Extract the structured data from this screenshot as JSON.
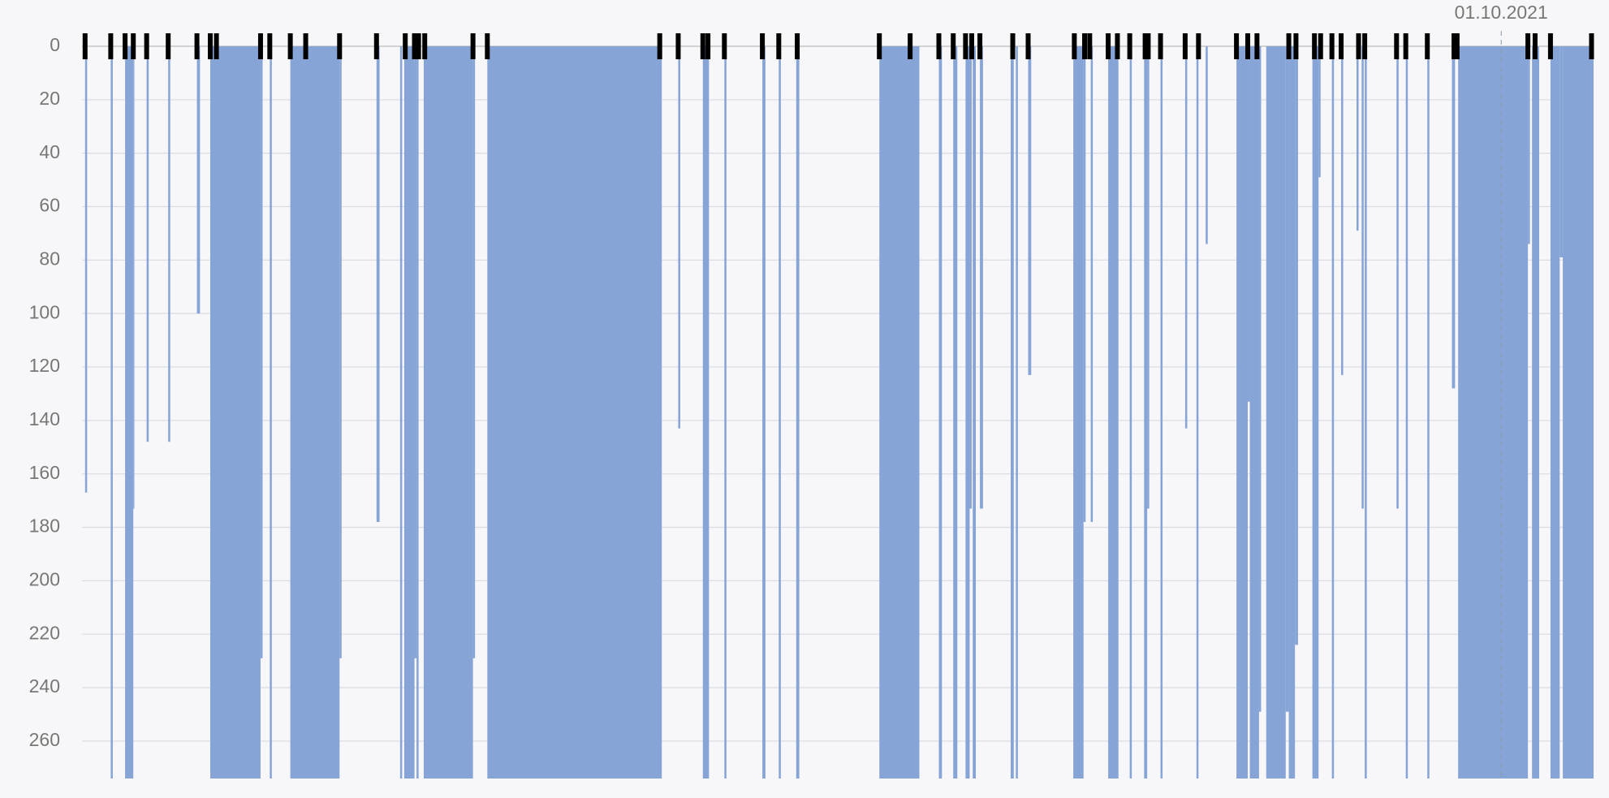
{
  "chart_data": {
    "type": "bar",
    "ylim": [
      0,
      274
    ],
    "yticks": [
      0,
      20,
      40,
      60,
      80,
      100,
      120,
      140,
      160,
      180,
      200,
      220,
      240,
      260
    ],
    "xlim": [
      80,
      1553
    ],
    "grid": true,
    "inverted_y": true,
    "color": "#87a4d7",
    "bars": [
      {
        "x0": 83,
        "x1": 85,
        "value": 167
      },
      {
        "x0": 108,
        "x1": 110,
        "value": 274
      },
      {
        "x0": 122,
        "x1": 130,
        "value": 274
      },
      {
        "x0": 130,
        "x1": 131,
        "value": 173
      },
      {
        "x0": 143,
        "x1": 145,
        "value": 148
      },
      {
        "x0": 164,
        "x1": 166,
        "value": 148
      },
      {
        "x0": 192,
        "x1": 195,
        "value": 100
      },
      {
        "x0": 205,
        "x1": 254,
        "value": 274
      },
      {
        "x0": 254,
        "x1": 256,
        "value": 229
      },
      {
        "x0": 263,
        "x1": 265,
        "value": 274
      },
      {
        "x0": 283,
        "x1": 331,
        "value": 274
      },
      {
        "x0": 331,
        "x1": 333,
        "value": 229
      },
      {
        "x0": 367,
        "x1": 370,
        "value": 178
      },
      {
        "x0": 390,
        "x1": 392,
        "value": 274
      },
      {
        "x0": 394,
        "x1": 404,
        "value": 274
      },
      {
        "x0": 404,
        "x1": 406,
        "value": 229
      },
      {
        "x0": 406,
        "x1": 408,
        "value": 274
      },
      {
        "x0": 413,
        "x1": 461,
        "value": 274
      },
      {
        "x0": 461,
        "x1": 463,
        "value": 229
      },
      {
        "x0": 475,
        "x1": 645,
        "value": 274
      },
      {
        "x0": 661,
        "x1": 663,
        "value": 143
      },
      {
        "x0": 685,
        "x1": 691,
        "value": 274
      },
      {
        "x0": 706,
        "x1": 708,
        "value": 274
      },
      {
        "x0": 743,
        "x1": 746,
        "value": 274
      },
      {
        "x0": 759,
        "x1": 761,
        "value": 274
      },
      {
        "x0": 776,
        "x1": 779,
        "value": 274
      },
      {
        "x0": 857,
        "x1": 896,
        "value": 274
      },
      {
        "x0": 915,
        "x1": 918,
        "value": 274
      },
      {
        "x0": 929,
        "x1": 933,
        "value": 274
      },
      {
        "x0": 941,
        "x1": 945,
        "value": 274
      },
      {
        "x0": 945,
        "x1": 947,
        "value": 173
      },
      {
        "x0": 948,
        "x1": 951,
        "value": 274
      },
      {
        "x0": 955,
        "x1": 958,
        "value": 173
      },
      {
        "x0": 985,
        "x1": 988,
        "value": 274
      },
      {
        "x0": 990,
        "x1": 992,
        "value": 274
      },
      {
        "x0": 1002,
        "x1": 1005,
        "value": 123
      },
      {
        "x0": 1046,
        "x1": 1056,
        "value": 274
      },
      {
        "x0": 1056,
        "x1": 1058,
        "value": 178
      },
      {
        "x0": 1063,
        "x1": 1065,
        "value": 178
      },
      {
        "x0": 1080,
        "x1": 1090,
        "value": 274
      },
      {
        "x0": 1101,
        "x1": 1103,
        "value": 274
      },
      {
        "x0": 1115,
        "x1": 1118,
        "value": 274
      },
      {
        "x0": 1118,
        "x1": 1120,
        "value": 173
      },
      {
        "x0": 1131,
        "x1": 1133,
        "value": 274
      },
      {
        "x0": 1155,
        "x1": 1157,
        "value": 143
      },
      {
        "x0": 1166,
        "x1": 1168,
        "value": 274
      },
      {
        "x0": 1175,
        "x1": 1177,
        "value": 74
      },
      {
        "x0": 1205,
        "x1": 1216,
        "value": 274
      },
      {
        "x0": 1216,
        "x1": 1218,
        "value": 133
      },
      {
        "x0": 1218,
        "x1": 1227,
        "value": 274
      },
      {
        "x0": 1227,
        "x1": 1229,
        "value": 249
      },
      {
        "x0": 1234,
        "x1": 1253,
        "value": 274
      },
      {
        "x0": 1253,
        "x1": 1256,
        "value": 249
      },
      {
        "x0": 1256,
        "x1": 1262,
        "value": 274
      },
      {
        "x0": 1262,
        "x1": 1265,
        "value": 224
      },
      {
        "x0": 1279,
        "x1": 1285,
        "value": 274
      },
      {
        "x0": 1285,
        "x1": 1287,
        "value": 49
      },
      {
        "x0": 1298,
        "x1": 1300,
        "value": 274
      },
      {
        "x0": 1307,
        "x1": 1309,
        "value": 123
      },
      {
        "x0": 1322,
        "x1": 1324,
        "value": 69
      },
      {
        "x0": 1327,
        "x1": 1329,
        "value": 173
      },
      {
        "x0": 1330,
        "x1": 1332,
        "value": 274
      },
      {
        "x0": 1361,
        "x1": 1363,
        "value": 173
      },
      {
        "x0": 1370,
        "x1": 1372,
        "value": 274
      },
      {
        "x0": 1391,
        "x1": 1393,
        "value": 274
      },
      {
        "x0": 1415,
        "x1": 1418,
        "value": 128
      },
      {
        "x0": 1421,
        "x1": 1489,
        "value": 274
      },
      {
        "x0": 1489,
        "x1": 1491,
        "value": 74
      },
      {
        "x0": 1493,
        "x1": 1500,
        "value": 274
      },
      {
        "x0": 1511,
        "x1": 1520,
        "value": 274
      },
      {
        "x0": 1520,
        "x1": 1523,
        "value": 79
      },
      {
        "x0": 1523,
        "x1": 1553,
        "value": 274
      }
    ],
    "events": [
      83,
      108,
      122,
      130,
      143,
      164,
      192,
      205,
      211,
      254,
      263,
      283,
      298,
      331,
      367,
      395,
      404,
      408,
      414,
      461,
      475,
      643,
      661,
      685,
      690,
      706,
      743,
      759,
      777,
      857,
      887,
      915,
      929,
      941,
      947,
      955,
      987,
      1002,
      1047,
      1057,
      1062,
      1080,
      1089,
      1101,
      1116,
      1119,
      1131,
      1155,
      1168,
      1205,
      1216,
      1225,
      1256,
      1263,
      1281,
      1287,
      1298,
      1307,
      1324,
      1330,
      1361,
      1370,
      1391,
      1417,
      1420,
      1489,
      1496,
      1511,
      1551
    ],
    "date_marker": {
      "x": 1463,
      "label": "01.10.2021"
    }
  }
}
